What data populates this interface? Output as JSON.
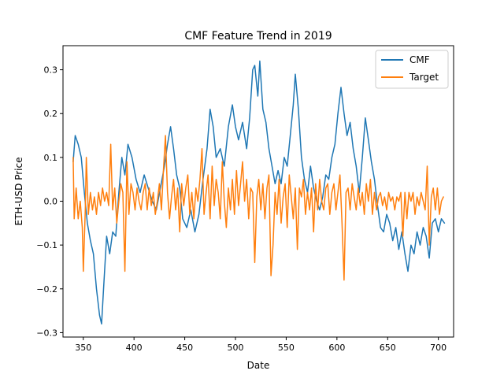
{
  "chart_data": {
    "type": "line",
    "title": "CMF Feature Trend in 2019",
    "xlabel": "Date",
    "ylabel": "ETH-USD Price",
    "xlim": [
      330,
      715
    ],
    "ylim": [
      -0.31,
      0.355
    ],
    "xticks": [
      350,
      400,
      450,
      500,
      550,
      600,
      650,
      700
    ],
    "yticks": [
      -0.3,
      -0.2,
      -0.1,
      0.0,
      0.1,
      0.2,
      0.3
    ],
    "ytick_labels": [
      "−0.3",
      "−0.2",
      "−0.1",
      "0.0",
      "0.1",
      "0.2",
      "0.3"
    ],
    "legend_position": "top-right",
    "grid": false,
    "series": [
      {
        "name": "CMF",
        "color": "#1f77b4",
        "points": [
          [
            340,
            0.09
          ],
          [
            342,
            0.15
          ],
          [
            345,
            0.13
          ],
          [
            348,
            0.1
          ],
          [
            351,
            0.02
          ],
          [
            354,
            -0.05
          ],
          [
            357,
            -0.09
          ],
          [
            360,
            -0.12
          ],
          [
            363,
            -0.2
          ],
          [
            366,
            -0.26
          ],
          [
            368,
            -0.28
          ],
          [
            370,
            -0.2
          ],
          [
            373,
            -0.08
          ],
          [
            376,
            -0.12
          ],
          [
            379,
            -0.07
          ],
          [
            382,
            -0.08
          ],
          [
            385,
            0.02
          ],
          [
            388,
            0.1
          ],
          [
            391,
            0.06
          ],
          [
            394,
            0.13
          ],
          [
            398,
            0.1
          ],
          [
            402,
            0.05
          ],
          [
            406,
            0.02
          ],
          [
            410,
            0.06
          ],
          [
            414,
            0.03
          ],
          [
            418,
            0.0
          ],
          [
            422,
            -0.02
          ],
          [
            426,
            0.03
          ],
          [
            430,
            0.08
          ],
          [
            433,
            0.13
          ],
          [
            436,
            0.17
          ],
          [
            439,
            0.12
          ],
          [
            442,
            0.06
          ],
          [
            445,
            0.03
          ],
          [
            448,
            -0.04
          ],
          [
            452,
            -0.06
          ],
          [
            456,
            -0.02
          ],
          [
            460,
            -0.07
          ],
          [
            464,
            -0.03
          ],
          [
            468,
            0.05
          ],
          [
            472,
            0.12
          ],
          [
            475,
            0.21
          ],
          [
            478,
            0.17
          ],
          [
            481,
            0.1
          ],
          [
            485,
            0.12
          ],
          [
            489,
            0.08
          ],
          [
            493,
            0.17
          ],
          [
            497,
            0.22
          ],
          [
            500,
            0.17
          ],
          [
            503,
            0.14
          ],
          [
            507,
            0.18
          ],
          [
            511,
            0.12
          ],
          [
            514,
            0.19
          ],
          [
            517,
            0.3
          ],
          [
            519,
            0.31
          ],
          [
            522,
            0.24
          ],
          [
            524,
            0.32
          ],
          [
            527,
            0.21
          ],
          [
            530,
            0.18
          ],
          [
            533,
            0.12
          ],
          [
            536,
            0.08
          ],
          [
            539,
            0.04
          ],
          [
            542,
            0.07
          ],
          [
            545,
            0.04
          ],
          [
            548,
            0.1
          ],
          [
            551,
            0.08
          ],
          [
            554,
            0.15
          ],
          [
            557,
            0.22
          ],
          [
            559,
            0.29
          ],
          [
            562,
            0.21
          ],
          [
            565,
            0.1
          ],
          [
            568,
            0.05
          ],
          [
            571,
            0.02
          ],
          [
            574,
            0.08
          ],
          [
            577,
            0.03
          ],
          [
            580,
            0.0
          ],
          [
            583,
            -0.02
          ],
          [
            586,
            0.01
          ],
          [
            589,
            0.06
          ],
          [
            592,
            0.05
          ],
          [
            595,
            0.1
          ],
          [
            598,
            0.13
          ],
          [
            601,
            0.2
          ],
          [
            604,
            0.26
          ],
          [
            607,
            0.2
          ],
          [
            610,
            0.15
          ],
          [
            613,
            0.18
          ],
          [
            616,
            0.12
          ],
          [
            619,
            0.08
          ],
          [
            622,
            0.02
          ],
          [
            625,
            0.1
          ],
          [
            628,
            0.19
          ],
          [
            631,
            0.14
          ],
          [
            634,
            0.09
          ],
          [
            637,
            0.05
          ],
          [
            640,
            -0.01
          ],
          [
            643,
            -0.06
          ],
          [
            646,
            -0.07
          ],
          [
            649,
            -0.03
          ],
          [
            652,
            -0.05
          ],
          [
            655,
            -0.09
          ],
          [
            658,
            -0.06
          ],
          [
            661,
            -0.11
          ],
          [
            664,
            -0.07
          ],
          [
            667,
            -0.12
          ],
          [
            670,
            -0.16
          ],
          [
            673,
            -0.1
          ],
          [
            676,
            -0.12
          ],
          [
            679,
            -0.07
          ],
          [
            682,
            -0.1
          ],
          [
            685,
            -0.06
          ],
          [
            688,
            -0.08
          ],
          [
            691,
            -0.13
          ],
          [
            694,
            -0.05
          ],
          [
            697,
            -0.04
          ],
          [
            700,
            -0.07
          ],
          [
            703,
            -0.04
          ],
          [
            706,
            -0.05
          ]
        ]
      },
      {
        "name": "Target",
        "color": "#ff7f0e",
        "points": [
          [
            340,
            0.1
          ],
          [
            341,
            -0.04
          ],
          [
            343,
            0.03
          ],
          [
            345,
            -0.04
          ],
          [
            347,
            0.0
          ],
          [
            349,
            -0.06
          ],
          [
            350,
            -0.16
          ],
          [
            352,
            -0.02
          ],
          [
            353,
            0.1
          ],
          [
            355,
            -0.03
          ],
          [
            357,
            0.02
          ],
          [
            359,
            -0.02
          ],
          [
            361,
            0.01
          ],
          [
            363,
            -0.03
          ],
          [
            365,
            0.02
          ],
          [
            367,
            -0.01
          ],
          [
            369,
            0.03
          ],
          [
            371,
            0.0
          ],
          [
            373,
            0.02
          ],
          [
            375,
            -0.01
          ],
          [
            377,
            0.13
          ],
          [
            379,
            -0.02
          ],
          [
            381,
            0.03
          ],
          [
            383,
            -0.05
          ],
          [
            385,
            0.0
          ],
          [
            387,
            0.04
          ],
          [
            389,
            0.02
          ],
          [
            391,
            -0.16
          ],
          [
            393,
            0.09
          ],
          [
            395,
            -0.03
          ],
          [
            397,
            0.04
          ],
          [
            399,
            0.02
          ],
          [
            401,
            -0.02
          ],
          [
            403,
            0.03
          ],
          [
            405,
            0.0
          ],
          [
            407,
            -0.02
          ],
          [
            409,
            0.02
          ],
          [
            411,
            0.04
          ],
          [
            413,
            -0.02
          ],
          [
            415,
            0.03
          ],
          [
            417,
            -0.01
          ],
          [
            419,
            0.02
          ],
          [
            421,
            -0.03
          ],
          [
            423,
            0.0
          ],
          [
            425,
            0.04
          ],
          [
            427,
            -0.02
          ],
          [
            429,
            0.07
          ],
          [
            431,
            0.15
          ],
          [
            433,
            0.02
          ],
          [
            435,
            -0.04
          ],
          [
            437,
            0.01
          ],
          [
            439,
            0.05
          ],
          [
            441,
            -0.02
          ],
          [
            443,
            0.03
          ],
          [
            445,
            -0.07
          ],
          [
            447,
            0.04
          ],
          [
            449,
            -0.01
          ],
          [
            451,
            0.03
          ],
          [
            453,
            0.06
          ],
          [
            455,
            -0.03
          ],
          [
            457,
            0.02
          ],
          [
            459,
            -0.04
          ],
          [
            461,
            0.03
          ],
          [
            463,
            0.0
          ],
          [
            465,
            0.05
          ],
          [
            467,
            0.12
          ],
          [
            469,
            -0.03
          ],
          [
            471,
            0.02
          ],
          [
            473,
            0.06
          ],
          [
            475,
            -0.04
          ],
          [
            477,
            0.08
          ],
          [
            479,
            -0.01
          ],
          [
            481,
            0.05
          ],
          [
            483,
            0.02
          ],
          [
            485,
            -0.04
          ],
          [
            487,
            0.09
          ],
          [
            489,
            0.0
          ],
          [
            491,
            -0.06
          ],
          [
            493,
            0.03
          ],
          [
            495,
            -0.02
          ],
          [
            497,
            0.05
          ],
          [
            499,
            -0.03
          ],
          [
            501,
            0.07
          ],
          [
            503,
            -0.01
          ],
          [
            505,
            0.04
          ],
          [
            507,
            0.09
          ],
          [
            509,
            0.0
          ],
          [
            511,
            0.05
          ],
          [
            513,
            -0.04
          ],
          [
            515,
            0.03
          ],
          [
            517,
            0.02
          ],
          [
            519,
            -0.14
          ],
          [
            521,
            0.01
          ],
          [
            523,
            0.05
          ],
          [
            525,
            -0.02
          ],
          [
            527,
            0.04
          ],
          [
            529,
            -0.04
          ],
          [
            531,
            0.03
          ],
          [
            533,
            0.06
          ],
          [
            535,
            -0.17
          ],
          [
            537,
            -0.1
          ],
          [
            539,
            0.02
          ],
          [
            541,
            -0.03
          ],
          [
            543,
            0.05
          ],
          [
            545,
            -0.05
          ],
          [
            547,
            0.01
          ],
          [
            549,
            0.04
          ],
          [
            551,
            -0.06
          ],
          [
            553,
            0.06
          ],
          [
            555,
            0.01
          ],
          [
            557,
            -0.04
          ],
          [
            559,
            0.03
          ],
          [
            561,
            -0.11
          ],
          [
            563,
            0.03
          ],
          [
            565,
            0.01
          ],
          [
            567,
            0.05
          ],
          [
            569,
            -0.03
          ],
          [
            571,
            0.02
          ],
          [
            573,
            -0.02
          ],
          [
            575,
            0.03
          ],
          [
            577,
            -0.07
          ],
          [
            579,
            0.04
          ],
          [
            581,
            -0.02
          ],
          [
            583,
            0.05
          ],
          [
            585,
            0.0
          ],
          [
            587,
            -0.02
          ],
          [
            589,
            0.03
          ],
          [
            591,
            0.04
          ],
          [
            593,
            -0.03
          ],
          [
            595,
            0.02
          ],
          [
            597,
            0.04
          ],
          [
            599,
            -0.02
          ],
          [
            601,
            0.02
          ],
          [
            603,
            0.06
          ],
          [
            605,
            -0.05
          ],
          [
            607,
            -0.18
          ],
          [
            609,
            0.02
          ],
          [
            611,
            0.03
          ],
          [
            613,
            -0.02
          ],
          [
            615,
            0.04
          ],
          [
            617,
            0.01
          ],
          [
            619,
            -0.02
          ],
          [
            621,
            0.03
          ],
          [
            623,
            -0.01
          ],
          [
            625,
            0.02
          ],
          [
            627,
            -0.03
          ],
          [
            629,
            0.04
          ],
          [
            631,
            0.0
          ],
          [
            633,
            0.05
          ],
          [
            635,
            -0.03
          ],
          [
            637,
            0.02
          ],
          [
            639,
            -0.02
          ],
          [
            641,
            0.01
          ],
          [
            643,
            0.02
          ],
          [
            645,
            -0.01
          ],
          [
            647,
            0.01
          ],
          [
            649,
            -0.02
          ],
          [
            651,
            0.02
          ],
          [
            653,
            0.0
          ],
          [
            655,
            0.01
          ],
          [
            657,
            -0.02
          ],
          [
            659,
            0.01
          ],
          [
            661,
            0.0
          ],
          [
            663,
            0.02
          ],
          [
            665,
            -0.08
          ],
          [
            667,
            0.02
          ],
          [
            669,
            -0.04
          ],
          [
            671,
            0.02
          ],
          [
            673,
            0.0
          ],
          [
            675,
            0.02
          ],
          [
            677,
            -0.03
          ],
          [
            679,
            0.01
          ],
          [
            681,
            -0.01
          ],
          [
            683,
            0.02
          ],
          [
            685,
            0.0
          ],
          [
            687,
            -0.02
          ],
          [
            689,
            0.08
          ],
          [
            691,
            -0.1
          ],
          [
            693,
            0.01
          ],
          [
            695,
            0.03
          ],
          [
            697,
            -0.02
          ],
          [
            699,
            0.03
          ],
          [
            701,
            -0.03
          ],
          [
            703,
            0.0
          ],
          [
            705,
            0.01
          ]
        ]
      }
    ]
  }
}
